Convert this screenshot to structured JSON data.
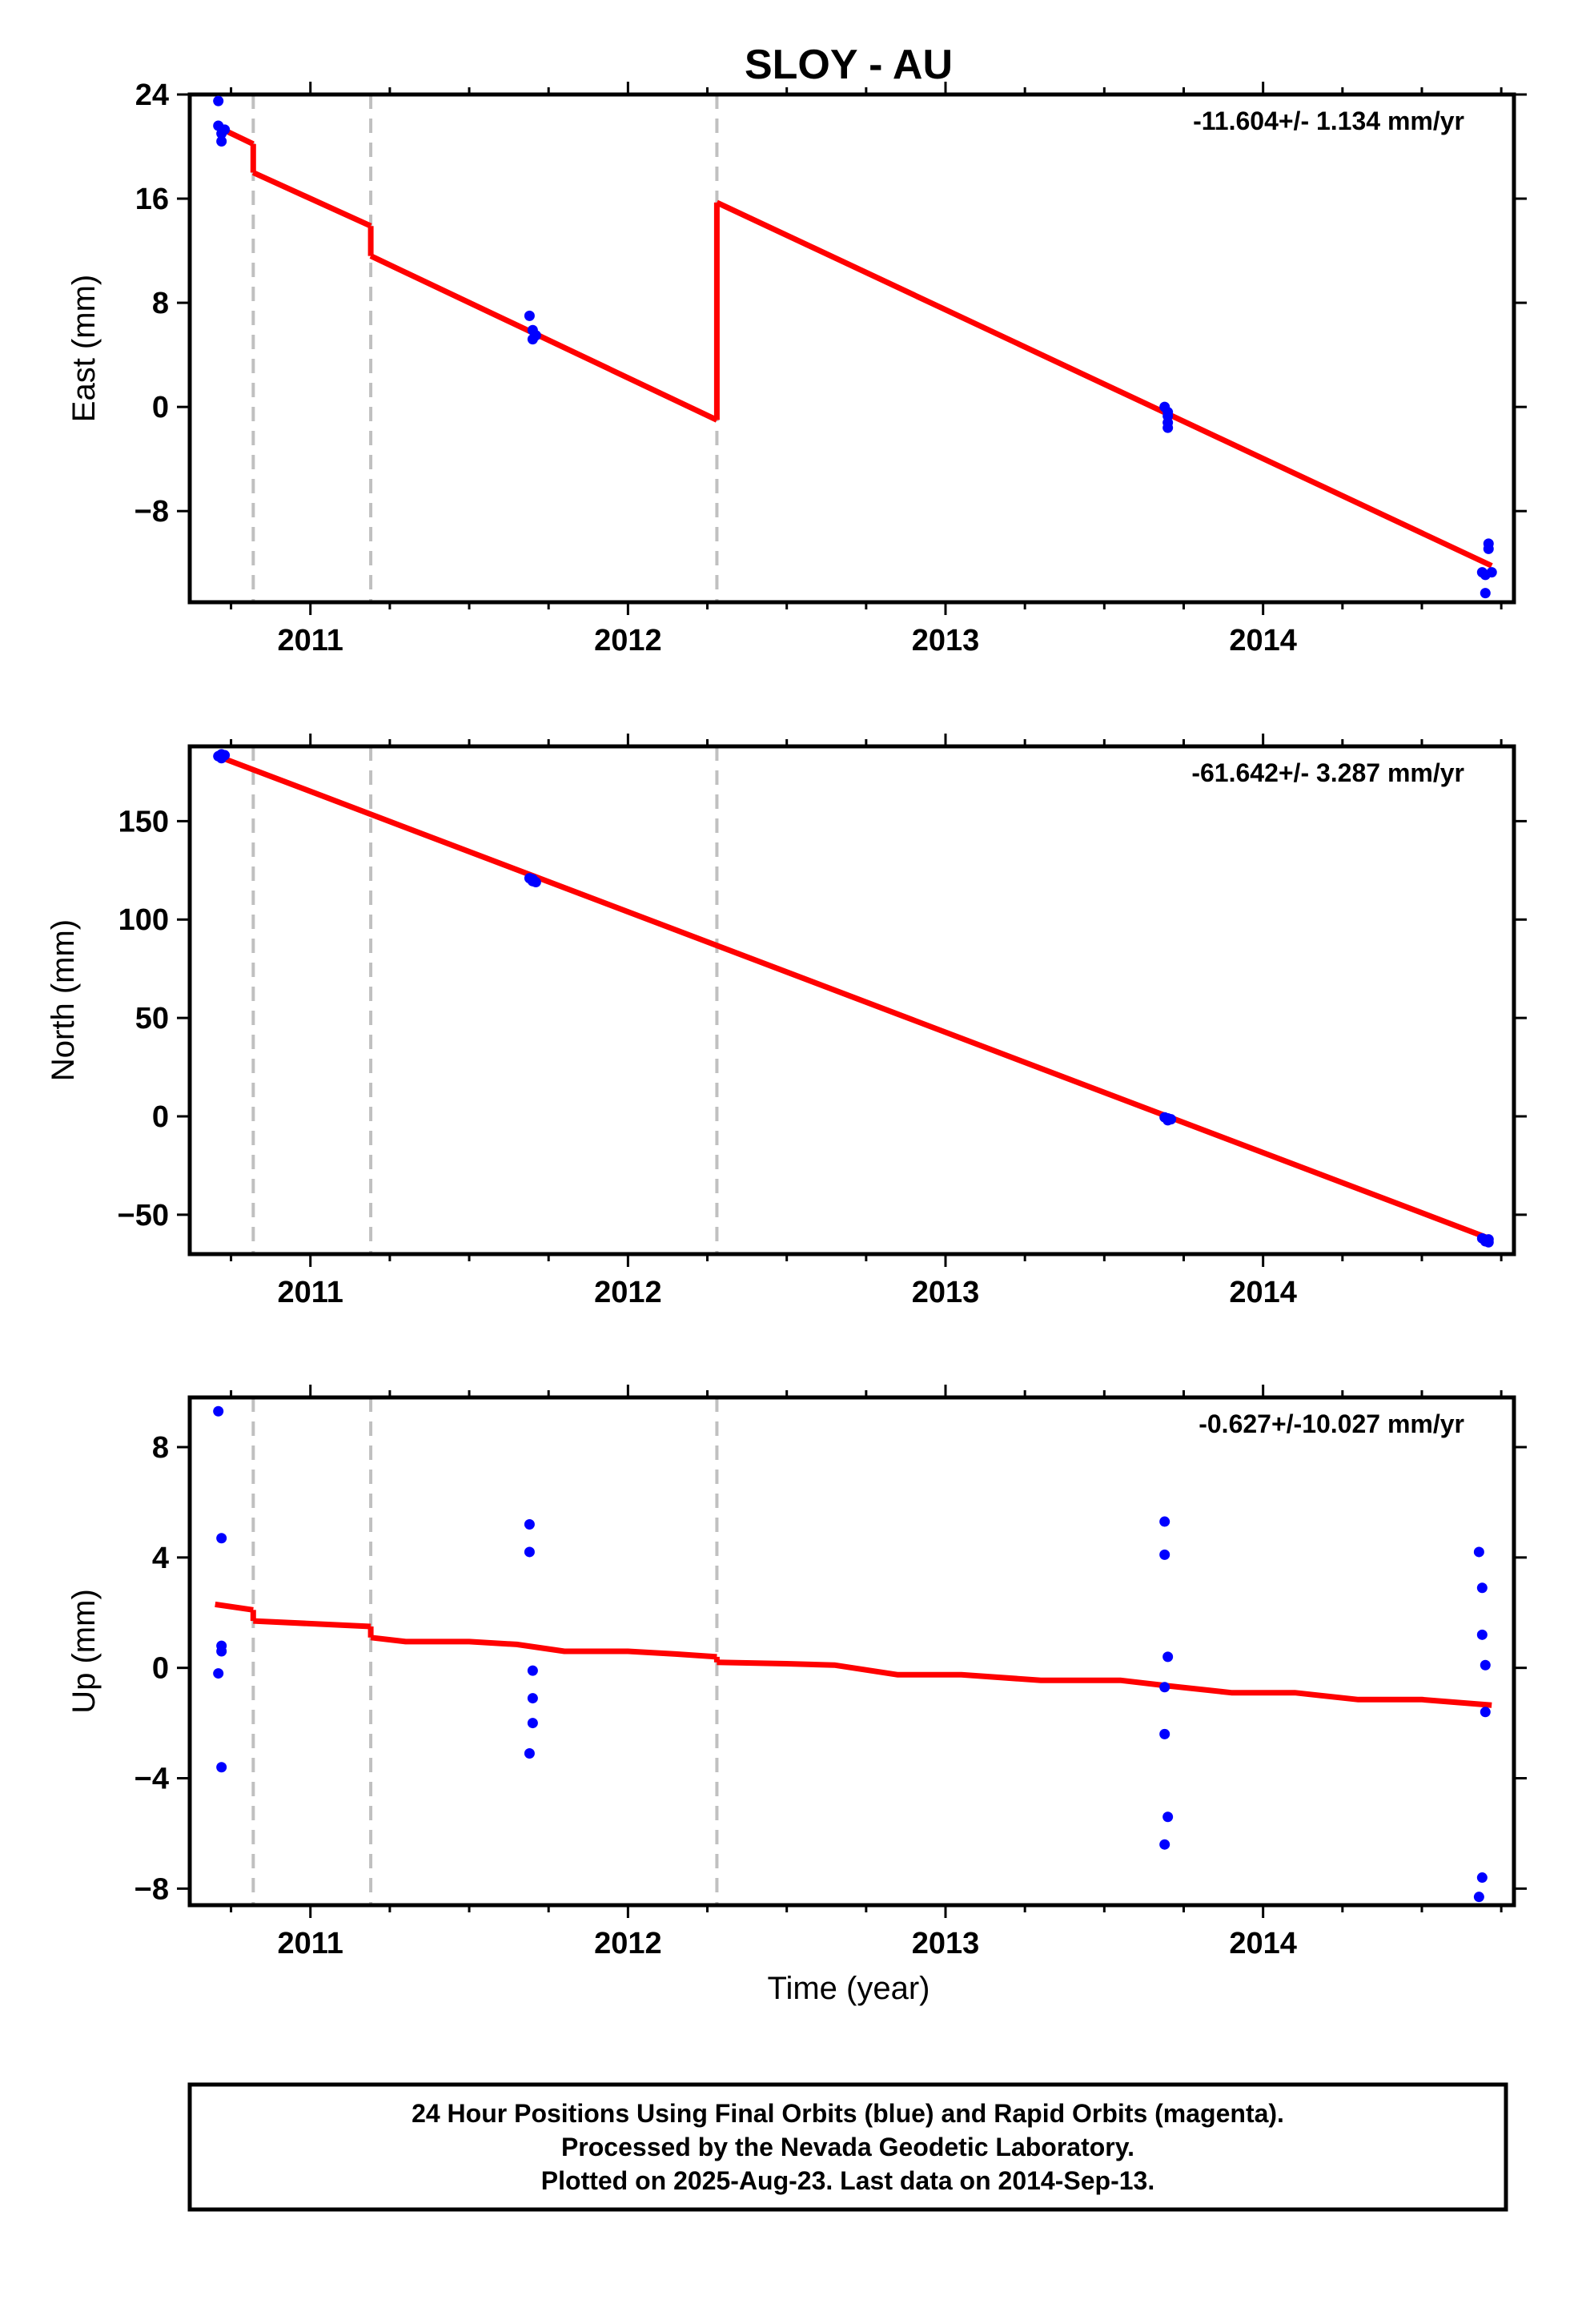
{
  "title": "SLOY - AU",
  "xlabel": "Time (year)",
  "x_tick_labels": [
    "2011",
    "2012",
    "2013",
    "2014"
  ],
  "colors": {
    "final_orbits": "#0000ff",
    "model": "#ff0000",
    "breaks": "#c0c0c0",
    "frame": "#000000"
  },
  "footer": {
    "line1": "24 Hour Positions Using Final Orbits (blue) and Rapid Orbits (magenta).",
    "line2": "Processed by the Nevada Geodetic Laboratory.",
    "line3": "Plotted on 2025-Aug-23. Last data on 2014-Sep-13."
  },
  "chart_data": [
    {
      "type": "scatter",
      "ylabel": "East (mm)",
      "rate_label": "-11.604+/- 1.134 mm/yr",
      "xlim": [
        2010.62,
        2014.79
      ],
      "ylim": [
        -15,
        24
      ],
      "x_ticks": [
        2011,
        2012,
        2013,
        2014
      ],
      "y_ticks": [
        24,
        16,
        8,
        0,
        -8
      ],
      "y_tick_labels": [
        "24",
        "16",
        "8",
        "0",
        "−8"
      ],
      "break_lines": [
        2010.82,
        2011.19,
        2012.28
      ],
      "points": [
        [
          2010.71,
          23.5
        ],
        [
          2010.71,
          21.6
        ],
        [
          2010.72,
          21.0
        ],
        [
          2010.72,
          20.4
        ],
        [
          2010.73,
          21.3
        ],
        [
          2011.69,
          7.0
        ],
        [
          2011.7,
          5.9
        ],
        [
          2011.7,
          5.2
        ],
        [
          2011.71,
          5.5
        ],
        [
          2013.69,
          0.0
        ],
        [
          2013.7,
          -0.4
        ],
        [
          2013.7,
          -0.7
        ],
        [
          2013.7,
          -1.2
        ],
        [
          2013.7,
          -1.6
        ],
        [
          2014.69,
          -12.7
        ],
        [
          2014.7,
          -12.9
        ],
        [
          2014.7,
          -14.3
        ],
        [
          2014.71,
          -10.9
        ],
        [
          2014.71,
          -10.5
        ],
        [
          2014.72,
          -12.7
        ]
      ],
      "model_segments": [
        [
          [
            2010.7,
            21.6
          ],
          [
            2010.82,
            20.2
          ]
        ],
        [
          [
            2010.82,
            20.2
          ],
          [
            2010.82,
            18.0
          ]
        ],
        [
          [
            2010.82,
            18.0
          ],
          [
            2011.19,
            13.9
          ]
        ],
        [
          [
            2011.19,
            13.9
          ],
          [
            2011.19,
            11.6
          ]
        ],
        [
          [
            2011.19,
            11.6
          ],
          [
            2012.28,
            -1.0
          ]
        ],
        [
          [
            2012.28,
            -1.0
          ],
          [
            2012.28,
            15.7
          ]
        ],
        [
          [
            2012.28,
            15.7
          ],
          [
            2014.72,
            -12.2
          ]
        ]
      ]
    },
    {
      "type": "scatter",
      "ylabel": "North (mm)",
      "rate_label": "-61.642+/- 3.287 mm/yr",
      "xlim": [
        2010.62,
        2014.79
      ],
      "ylim": [
        -70,
        188
      ],
      "x_ticks": [
        2011,
        2012,
        2013,
        2014
      ],
      "y_ticks": [
        150,
        100,
        50,
        0,
        -50
      ],
      "y_tick_labels": [
        "150",
        "100",
        "50",
        "0",
        "−50"
      ],
      "break_lines": [
        2010.82,
        2011.19,
        2012.28
      ],
      "points": [
        [
          2010.71,
          183.0
        ],
        [
          2010.72,
          182.0
        ],
        [
          2010.72,
          184.0
        ],
        [
          2010.73,
          183.5
        ],
        [
          2011.69,
          121.0
        ],
        [
          2011.7,
          119.5
        ],
        [
          2011.7,
          120.5
        ],
        [
          2011.71,
          119.0
        ],
        [
          2013.69,
          -0.5
        ],
        [
          2013.7,
          -1.0
        ],
        [
          2013.7,
          -2.0
        ],
        [
          2013.71,
          -1.5
        ],
        [
          2014.69,
          -62.0
        ],
        [
          2014.7,
          -63.5
        ],
        [
          2014.71,
          -62.5
        ],
        [
          2014.71,
          -64.0
        ]
      ],
      "model_segments": [
        [
          [
            2010.7,
            183.5
          ],
          [
            2014.72,
            -62.5
          ]
        ]
      ]
    },
    {
      "type": "scatter",
      "ylabel": "Up (mm)",
      "rate_label": "-0.627+/-10.027 mm/yr",
      "xlim": [
        2010.62,
        2014.79
      ],
      "ylim": [
        -8.6,
        9.8
      ],
      "x_ticks": [
        2011,
        2012,
        2013,
        2014
      ],
      "y_ticks": [
        8,
        4,
        0,
        -4,
        -8
      ],
      "y_tick_labels": [
        "8",
        "4",
        "0",
        "−4",
        "−8"
      ],
      "break_lines": [
        2010.82,
        2011.19,
        2012.28
      ],
      "points": [
        [
          2010.71,
          9.3
        ],
        [
          2010.72,
          4.7
        ],
        [
          2010.72,
          0.8
        ],
        [
          2010.72,
          0.6
        ],
        [
          2010.71,
          -0.2
        ],
        [
          2010.72,
          -3.6
        ],
        [
          2011.69,
          5.2
        ],
        [
          2011.69,
          4.2
        ],
        [
          2011.7,
          -0.1
        ],
        [
          2011.7,
          -1.1
        ],
        [
          2011.7,
          -2.0
        ],
        [
          2011.69,
          -3.1
        ],
        [
          2013.69,
          5.3
        ],
        [
          2013.69,
          4.1
        ],
        [
          2013.7,
          0.4
        ],
        [
          2013.69,
          -0.7
        ],
        [
          2013.69,
          -2.4
        ],
        [
          2013.7,
          -5.4
        ],
        [
          2013.69,
          -6.4
        ],
        [
          2014.68,
          4.2
        ],
        [
          2014.69,
          2.9
        ],
        [
          2014.69,
          1.2
        ],
        [
          2014.7,
          0.1
        ],
        [
          2014.7,
          -1.6
        ],
        [
          2014.69,
          -7.6
        ],
        [
          2014.68,
          -8.3
        ]
      ],
      "model_segments": [
        [
          [
            2010.7,
            2.3
          ],
          [
            2010.82,
            2.1
          ]
        ],
        [
          [
            2010.82,
            2.1
          ],
          [
            2010.82,
            1.7
          ]
        ],
        [
          [
            2010.82,
            1.7
          ],
          [
            2011.19,
            1.5
          ]
        ],
        [
          [
            2011.19,
            1.5
          ],
          [
            2011.19,
            1.1
          ]
        ],
        [
          [
            2011.19,
            1.1
          ],
          [
            2011.3,
            0.95
          ],
          [
            2011.5,
            0.95
          ],
          [
            2011.65,
            0.85
          ],
          [
            2011.8,
            0.6
          ],
          [
            2012.0,
            0.6
          ],
          [
            2012.15,
            0.5
          ],
          [
            2012.28,
            0.4
          ]
        ],
        [
          [
            2012.28,
            0.4
          ],
          [
            2012.28,
            0.2
          ]
        ],
        [
          [
            2012.28,
            0.2
          ],
          [
            2012.5,
            0.15
          ],
          [
            2012.65,
            0.1
          ],
          [
            2012.85,
            -0.25
          ],
          [
            2013.05,
            -0.25
          ],
          [
            2013.3,
            -0.45
          ],
          [
            2013.55,
            -0.45
          ],
          [
            2013.7,
            -0.65
          ],
          [
            2013.9,
            -0.9
          ],
          [
            2014.1,
            -0.9
          ],
          [
            2014.3,
            -1.15
          ],
          [
            2014.5,
            -1.15
          ],
          [
            2014.72,
            -1.35
          ]
        ]
      ]
    }
  ]
}
